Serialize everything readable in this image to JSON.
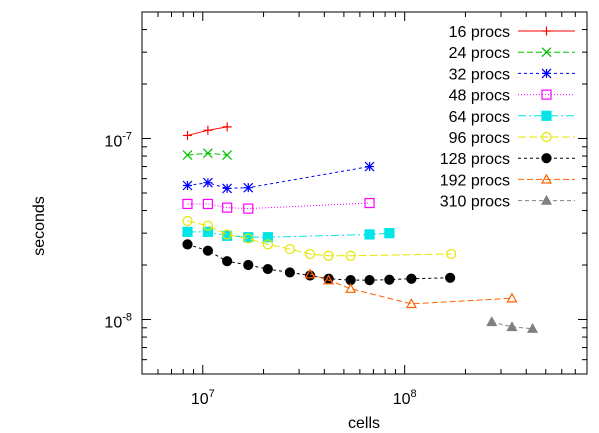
{
  "chart_data": {
    "type": "line",
    "title": "",
    "xlabel": "cells",
    "ylabel": "seconds",
    "xscale": "log",
    "yscale": "log",
    "xlim": [
      5000000,
      800000000
    ],
    "ylim": [
      5e-09,
      5e-07
    ],
    "x_ticks": [
      {
        "value": 10000000,
        "base": "10",
        "exp": "7"
      },
      {
        "value": 100000000,
        "base": "10",
        "exp": "8"
      }
    ],
    "y_ticks": [
      {
        "value": 1e-08,
        "base": "10",
        "exp": "-8"
      },
      {
        "value": 1e-07,
        "base": "10",
        "exp": "-7"
      }
    ],
    "grid": false,
    "legend_position": "top-right",
    "series": [
      {
        "name": "16 procs",
        "color": "#ff0000",
        "marker": "plus",
        "dash": "",
        "x": [
          8400000,
          10600000,
          13200000
        ],
        "y": [
          1.04e-07,
          1.11e-07,
          1.16e-07
        ]
      },
      {
        "name": "24 procs",
        "color": "#00c000",
        "marker": "cross",
        "dash": "6,3",
        "x": [
          8400000,
          10600000,
          13200000
        ],
        "y": [
          8.1e-08,
          8.3e-08,
          8.1e-08
        ]
      },
      {
        "name": "32 procs",
        "color": "#0000ff",
        "marker": "star",
        "dash": "3,3",
        "x": [
          8400000,
          10600000,
          13200000,
          16800000,
          67000000
        ],
        "y": [
          5.5e-08,
          5.7e-08,
          5.3e-08,
          5.35e-08,
          7e-08
        ]
      },
      {
        "name": "48 procs",
        "color": "#ff00ff",
        "marker": "box",
        "dash": "1,2",
        "x": [
          8400000,
          10600000,
          13200000,
          16800000,
          67000000
        ],
        "y": [
          4.35e-08,
          4.35e-08,
          4.15e-08,
          4.1e-08,
          4.4e-08
        ]
      },
      {
        "name": "64 procs",
        "color": "#00e5e5",
        "marker": "fbox",
        "dash": "8,3,2,3",
        "x": [
          8400000,
          10600000,
          13200000,
          16800000,
          21000000,
          67000000,
          84000000
        ],
        "y": [
          3.05e-08,
          3.05e-08,
          2.9e-08,
          2.85e-08,
          2.85e-08,
          2.95e-08,
          3e-08
        ]
      },
      {
        "name": "96 procs",
        "color": "#e6e600",
        "marker": "circle",
        "dash": "8,3",
        "x": [
          8400000,
          10600000,
          13200000,
          16800000,
          21000000,
          27000000,
          34000000,
          42000000,
          54000000,
          170000000
        ],
        "y": [
          3.5e-08,
          3.3e-08,
          2.95e-08,
          2.8e-08,
          2.6e-08,
          2.45e-08,
          2.3e-08,
          2.25e-08,
          2.25e-08,
          2.3e-08
        ]
      },
      {
        "name": "128 procs",
        "color": "#000000",
        "marker": "fcircle",
        "dash": "3,3",
        "x": [
          8400000,
          10600000,
          13200000,
          16800000,
          21000000,
          27000000,
          34000000,
          42000000,
          54000000,
          67000000,
          84000000,
          108000000,
          168000000
        ],
        "y": [
          2.6e-08,
          2.4e-08,
          2.1e-08,
          2e-08,
          1.9e-08,
          1.82e-08,
          1.75e-08,
          1.68e-08,
          1.65e-08,
          1.65e-08,
          1.66e-08,
          1.68e-08,
          1.7e-08
        ]
      },
      {
        "name": "192 procs",
        "color": "#ff6000",
        "marker": "triangle",
        "dash": "6,3",
        "x": [
          34000000,
          42000000,
          54000000,
          108000000,
          340000000
        ],
        "y": [
          1.78e-08,
          1.65e-08,
          1.48e-08,
          1.22e-08,
          1.31e-08
        ]
      },
      {
        "name": "310 procs",
        "color": "#808080",
        "marker": "ftriangle",
        "dash": "4,3",
        "x": [
          270000000,
          340000000,
          430000000
        ],
        "y": [
          9.7e-09,
          9.1e-09,
          8.9e-09
        ]
      }
    ]
  }
}
